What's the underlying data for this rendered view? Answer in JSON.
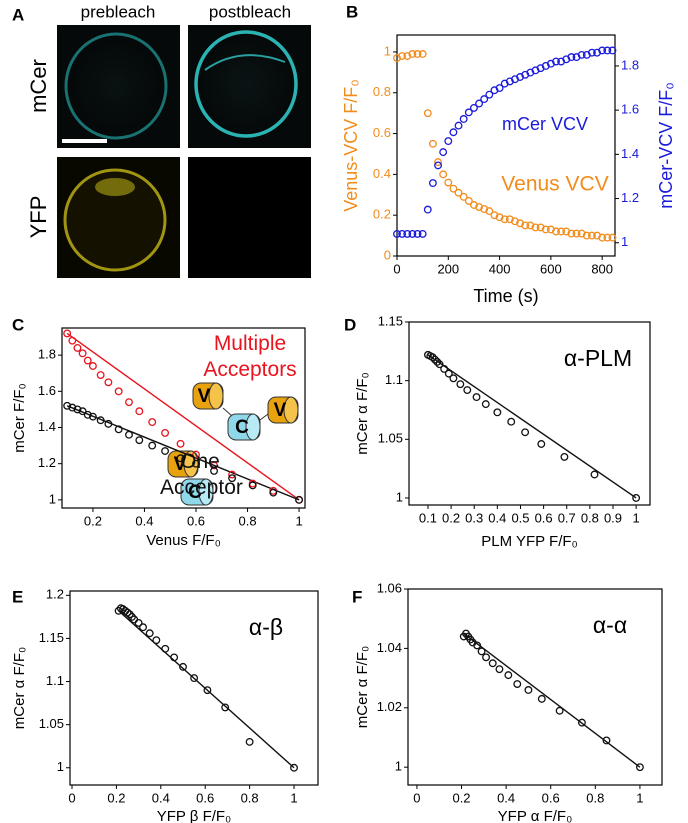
{
  "panel_a": {
    "label": "A",
    "columns": [
      "prebleach",
      "postbleach"
    ],
    "rows": [
      "mCer",
      "YFP"
    ]
  },
  "chart_data": [
    {
      "type": "scatter",
      "panel": "B",
      "xlabel": "Time (s)",
      "ylabel": "Venus-VCV F/F₀",
      "y2label": "mCer-VCV F/F₀",
      "xlim": [
        0,
        850
      ],
      "xticks": [
        0,
        200,
        400,
        600,
        800
      ],
      "ylim": [
        0,
        1.083
      ],
      "yticks": [
        0,
        0.2,
        0.4,
        0.6,
        0.8,
        1
      ],
      "y2lim": [
        0.94,
        1.94
      ],
      "y2ticks": [
        1,
        1.2,
        1.4,
        1.6,
        1.8
      ],
      "x": [
        0,
        20,
        40,
        60,
        80,
        100,
        120,
        140,
        160,
        180,
        200,
        220,
        240,
        260,
        280,
        300,
        320,
        340,
        360,
        380,
        400,
        420,
        440,
        460,
        480,
        500,
        520,
        540,
        560,
        580,
        600,
        620,
        640,
        660,
        680,
        700,
        720,
        740,
        760,
        780,
        800,
        820,
        840
      ],
      "series": [
        {
          "name": "Venus VCV",
          "color": "#f28c1c",
          "values": [
            0.97,
            0.98,
            0.98,
            0.99,
            0.99,
            0.99,
            0.7,
            0.55,
            0.46,
            0.4,
            0.36,
            0.33,
            0.31,
            0.29,
            0.27,
            0.25,
            0.24,
            0.23,
            0.22,
            0.2,
            0.19,
            0.18,
            0.18,
            0.17,
            0.16,
            0.15,
            0.15,
            0.14,
            0.14,
            0.13,
            0.13,
            0.12,
            0.12,
            0.12,
            0.11,
            0.11,
            0.11,
            0.1,
            0.1,
            0.1,
            0.09,
            0.09,
            0.09
          ]
        },
        {
          "name": "mCer VCV",
          "color": "#1a1adb",
          "axis": "y2",
          "values": [
            1.04,
            1.04,
            1.04,
            1.04,
            1.04,
            1.04,
            1.15,
            1.27,
            1.35,
            1.41,
            1.46,
            1.5,
            1.53,
            1.56,
            1.59,
            1.61,
            1.63,
            1.65,
            1.67,
            1.69,
            1.7,
            1.72,
            1.73,
            1.74,
            1.75,
            1.76,
            1.77,
            1.78,
            1.79,
            1.8,
            1.81,
            1.82,
            1.82,
            1.83,
            1.84,
            1.84,
            1.85,
            1.85,
            1.86,
            1.86,
            1.87,
            1.87,
            1.87
          ]
        }
      ]
    },
    {
      "type": "scatter",
      "panel": "C",
      "xlabel": "Venus F/F₀",
      "ylabel": "mCer F/F₀",
      "xlim": [
        0.08,
        1.023
      ],
      "xticks": [
        0.2,
        0.4,
        0.6,
        0.8,
        1
      ],
      "ylim": [
        0.955,
        1.95
      ],
      "yticks": [
        1,
        1.2,
        1.4,
        1.6,
        1.8
      ],
      "icon_labels": {
        "venus": "V",
        "cerulean": "C"
      },
      "x": [
        0.1,
        0.12,
        0.14,
        0.16,
        0.18,
        0.2,
        0.23,
        0.26,
        0.3,
        0.34,
        0.38,
        0.43,
        0.48,
        0.54,
        0.6,
        0.67,
        0.74,
        0.82,
        0.9,
        1
      ],
      "series": [
        {
          "name": "Multiple Acceptors",
          "color": "#e8141e",
          "values": [
            1.92,
            1.88,
            1.84,
            1.81,
            1.77,
            1.74,
            1.69,
            1.65,
            1.6,
            1.54,
            1.49,
            1.43,
            1.37,
            1.31,
            1.25,
            1.19,
            1.14,
            1.09,
            1.05,
            1
          ]
        },
        {
          "name": "One Acceptor",
          "color": "#111111",
          "values": [
            1.52,
            1.51,
            1.5,
            1.49,
            1.47,
            1.46,
            1.44,
            1.42,
            1.39,
            1.36,
            1.33,
            1.3,
            1.27,
            1.23,
            1.2,
            1.16,
            1.12,
            1.08,
            1.04,
            1
          ]
        }
      ],
      "fit_lines": [
        {
          "color": "#e8141e",
          "x": [
            0.1,
            1
          ],
          "y": [
            1.92,
            1
          ]
        },
        {
          "color": "#111111",
          "x": [
            0.1,
            1
          ],
          "y": [
            1.52,
            1
          ]
        }
      ]
    },
    {
      "type": "scatter",
      "panel": "D",
      "annotation": "α-PLM",
      "xlabel": "PLM YFP F/F₀",
      "ylabel": "mCer α F/F₀",
      "xlim": [
        0.018,
        1.06
      ],
      "xticks": [
        0.1,
        0.2,
        0.3,
        0.4,
        0.5,
        0.6,
        0.7,
        0.8,
        0.9,
        1
      ],
      "ylim": [
        0.994,
        1.15
      ],
      "yticks": [
        1,
        1.05,
        1.1,
        1.15
      ],
      "x": [
        0.1,
        0.11,
        0.12,
        0.13,
        0.14,
        0.15,
        0.17,
        0.19,
        0.21,
        0.24,
        0.27,
        0.31,
        0.35,
        0.4,
        0.46,
        0.52,
        0.59,
        0.69,
        0.82,
        1
      ],
      "series": [
        {
          "color": "#111111",
          "values": [
            1.122,
            1.121,
            1.12,
            1.118,
            1.116,
            1.114,
            1.11,
            1.106,
            1.102,
            1.097,
            1.092,
            1.086,
            1.08,
            1.073,
            1.065,
            1.056,
            1.046,
            1.035,
            1.02,
            1
          ]
        }
      ],
      "fit_lines": [
        {
          "color": "#111111",
          "x": [
            0.1,
            1
          ],
          "y": [
            1.122,
            1
          ]
        }
      ]
    },
    {
      "type": "scatter",
      "panel": "E",
      "annotation": "α-β",
      "xlabel": "YFP β F/F₀",
      "ylabel": "mCer α F/F₀",
      "xlim": [
        -0.009,
        1.108
      ],
      "xticks": [
        0,
        0.2,
        0.4,
        0.6,
        0.8,
        1
      ],
      "ylim": [
        0.98,
        1.205
      ],
      "yticks": [
        1,
        1.05,
        1.1,
        1.15,
        1.2
      ],
      "x": [
        0.21,
        0.22,
        0.23,
        0.24,
        0.25,
        0.26,
        0.27,
        0.28,
        0.3,
        0.32,
        0.35,
        0.38,
        0.42,
        0.46,
        0.5,
        0.55,
        0.61,
        0.69,
        0.8,
        1
      ],
      "series": [
        {
          "color": "#111111",
          "values": [
            1.182,
            1.185,
            1.184,
            1.182,
            1.18,
            1.178,
            1.175,
            1.172,
            1.168,
            1.163,
            1.156,
            1.148,
            1.138,
            1.128,
            1.117,
            1.104,
            1.09,
            1.07,
            1.03,
            1
          ]
        }
      ],
      "fit_lines": [
        {
          "color": "#111111",
          "x": [
            0.21,
            1
          ],
          "y": [
            1.182,
            1
          ]
        }
      ]
    },
    {
      "type": "scatter",
      "panel": "F",
      "annotation": "α-α",
      "xlabel": "YFP α F/F₀",
      "ylabel": "mCer α F/F₀",
      "xlim": [
        -0.04,
        1.099
      ],
      "xticks": [
        0,
        0.2,
        0.4,
        0.6,
        0.8,
        1
      ],
      "ylim": [
        0.994,
        1.06
      ],
      "yticks": [
        1,
        1.02,
        1.04,
        1.06
      ],
      "x": [
        0.21,
        0.22,
        0.23,
        0.24,
        0.25,
        0.27,
        0.29,
        0.31,
        0.34,
        0.37,
        0.41,
        0.45,
        0.5,
        0.56,
        0.64,
        0.74,
        0.85,
        1
      ],
      "series": [
        {
          "color": "#111111",
          "values": [
            1.044,
            1.045,
            1.044,
            1.043,
            1.042,
            1.041,
            1.039,
            1.037,
            1.035,
            1.033,
            1.031,
            1.028,
            1.026,
            1.023,
            1.019,
            1.015,
            1.009,
            1
          ]
        }
      ],
      "fit_lines": [
        {
          "color": "#111111",
          "x": [
            0.21,
            1
          ],
          "y": [
            1.045,
            1
          ]
        }
      ]
    }
  ]
}
